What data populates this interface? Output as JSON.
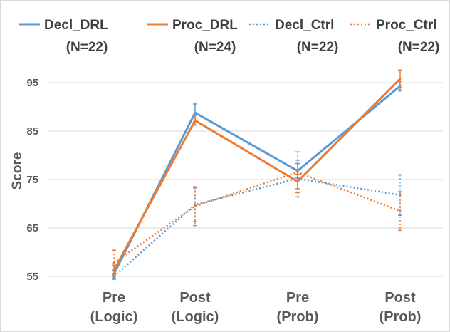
{
  "chart_data": {
    "type": "line",
    "ylabel": "Score",
    "ylim": [
      55,
      95
    ],
    "yticks": [
      55,
      65,
      75,
      85,
      95
    ],
    "grid": "horizontal",
    "legend_position": "top",
    "categories": [
      {
        "line1": "Pre",
        "line2": "(Logic)"
      },
      {
        "line1": "Post",
        "line2": "(Logic)"
      },
      {
        "line1": "Pre",
        "line2": "(Prob)"
      },
      {
        "line1": "Post",
        "line2": "(Prob)"
      }
    ],
    "series": [
      {
        "name": "Decl_DRL",
        "n_label": "(N=22)",
        "color": "#5B9BD5",
        "style": "solid",
        "values": [
          55.5,
          88.8,
          76.8,
          94.3
        ],
        "errors": [
          0.8,
          1.8,
          1.5,
          1.0
        ]
      },
      {
        "name": "Proc_DRL",
        "n_label": "(N=24)",
        "color": "#ED7D31",
        "style": "solid",
        "values": [
          56.3,
          87.2,
          74.6,
          95.8
        ],
        "errors": [
          1.0,
          1.0,
          1.5,
          1.8
        ]
      },
      {
        "name": "Decl_Ctrl",
        "n_label": "(N=22)",
        "color": "#5B9BD5",
        "style": "dotted",
        "values": [
          55.0,
          69.8,
          75.2,
          71.8
        ],
        "errors": [
          0.6,
          3.5,
          3.8,
          4.2
        ]
      },
      {
        "name": "Proc_Ctrl",
        "n_label": "(N=22)",
        "color": "#ED7D31",
        "style": "dotted",
        "values": [
          57.8,
          69.5,
          76.5,
          68.5
        ],
        "errors": [
          2.6,
          4.0,
          4.2,
          4.0
        ]
      }
    ]
  }
}
